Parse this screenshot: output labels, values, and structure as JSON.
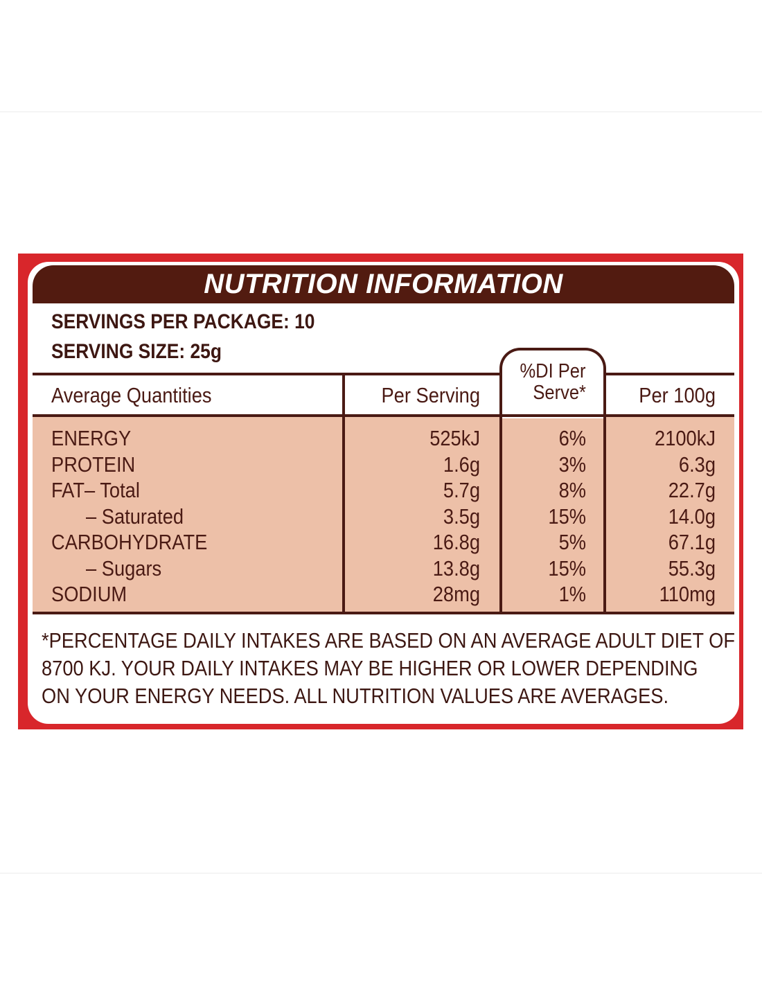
{
  "title": "NUTRITION INFORMATION",
  "servings_per_package": "SERVINGS PER PACKAGE: 10",
  "serving_size": "SERVING SIZE: 25g",
  "headers": {
    "quantities": "Average Quantities",
    "per_serving": "Per Serving",
    "di_line1": "%DI Per",
    "di_line2": "Serve*",
    "per_100g": "Per 100g"
  },
  "rows": [
    {
      "name": "ENERGY",
      "per_serving": "525kJ",
      "di": "6%",
      "per_100g": "2100kJ"
    },
    {
      "name": "PROTEIN",
      "per_serving": "1.6g",
      "di": "3%",
      "per_100g": "6.3g"
    },
    {
      "name": "FAT– Total",
      "per_serving": "5.7g",
      "di": "8%",
      "per_100g": "22.7g"
    },
    {
      "name": "– Saturated",
      "per_serving": "3.5g",
      "di": "15%",
      "per_100g": "14.0g"
    },
    {
      "name": "CARBOHYDRATE",
      "per_serving": "16.8g",
      "di": "5%",
      "per_100g": "67.1g"
    },
    {
      "name": "– Sugars",
      "per_serving": "13.8g",
      "di": "15%",
      "per_100g": "55.3g"
    },
    {
      "name": "SODIUM",
      "per_serving": "28mg",
      "di": "1%",
      "per_100g": "110mg"
    }
  ],
  "footnote": [
    "*PERCENTAGE DAILY INTAKES ARE BASED ON AN AVERAGE ADULT DIET OF",
    "8700 KJ. YOUR DAILY INTAKES MAY BE HIGHER OR LOWER DEPENDING",
    "ON YOUR ENERGY NEEDS. ALL NUTRITION VALUES ARE AVERAGES."
  ],
  "colors": {
    "outer_border": "#d8262b",
    "title_bar": "#521b10",
    "body_fill": "#edc0a8",
    "text": "#4a1a14"
  }
}
